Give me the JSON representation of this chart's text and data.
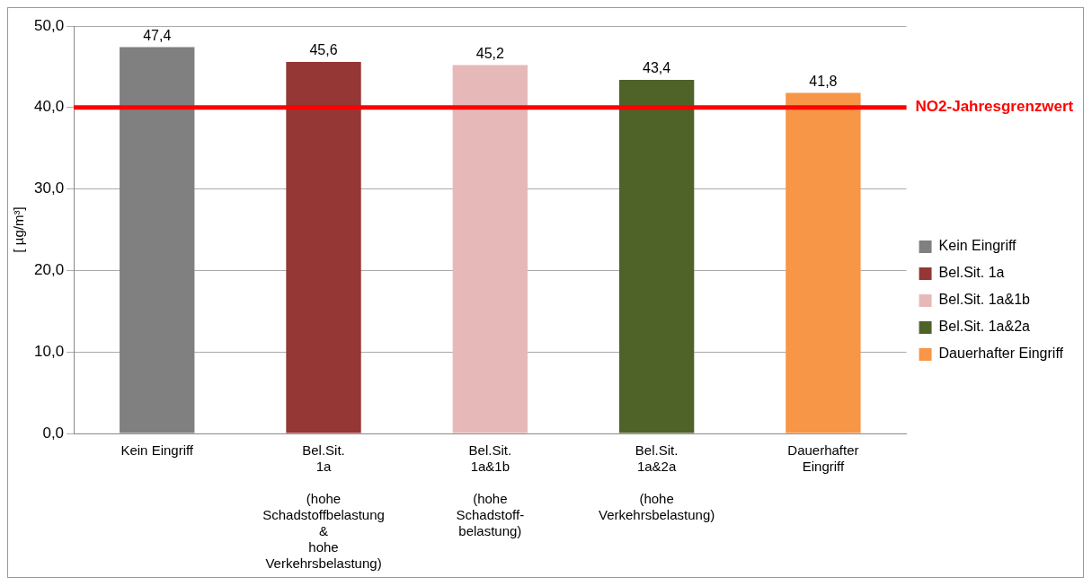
{
  "chart_data": {
    "type": "bar",
    "ylabel": "[ µg/m³]",
    "categories": [
      "Kein Eingriff",
      "Bel.Sit.\n1a\n\n(hohe\nSchadstoffbelastung\n&\nhohe\nVerkehrsbelastung)",
      "Bel.Sit.\n1a&1b\n\n(hohe\nSchadstoff-\nbelastung)",
      "Bel.Sit.\n1a&2a\n\n(hohe\nVerkehrsbelastung)",
      "Dauerhafter\nEingriff"
    ],
    "series": [
      {
        "name": "Kein Eingriff",
        "color": "#808080",
        "values": [
          47.4,
          null,
          null,
          null,
          null
        ],
        "value_labels": [
          "47,4",
          null,
          null,
          null,
          null
        ]
      },
      {
        "name": "Bel.Sit. 1a",
        "color": "#953735",
        "values": [
          null,
          45.6,
          null,
          null,
          null
        ],
        "value_labels": [
          null,
          "45,6",
          null,
          null,
          null
        ]
      },
      {
        "name": "Bel.Sit. 1a&1b",
        "color": "#e6b9b8",
        "values": [
          null,
          null,
          45.2,
          null,
          null
        ],
        "value_labels": [
          null,
          null,
          "45,2",
          null,
          null
        ]
      },
      {
        "name": "Bel.Sit. 1a&2a",
        "color": "#4f6228",
        "values": [
          null,
          null,
          null,
          43.4,
          null
        ],
        "value_labels": [
          null,
          null,
          null,
          "43,4",
          null
        ]
      },
      {
        "name": "Dauerhafter Eingriff",
        "color": "#f79646",
        "values": [
          null,
          null,
          null,
          null,
          41.8
        ],
        "value_labels": [
          null,
          null,
          null,
          null,
          "41,8"
        ]
      }
    ],
    "ylim": [
      0,
      50
    ],
    "yticks": [
      {
        "value": 0,
        "label": "0,0"
      },
      {
        "value": 10,
        "label": "10,0"
      },
      {
        "value": 20,
        "label": "20,0"
      },
      {
        "value": 30,
        "label": "30,0"
      },
      {
        "value": 40,
        "label": "40,0"
      },
      {
        "value": 50,
        "label": "50,0"
      }
    ],
    "ref_lines": [
      {
        "axis": "y",
        "value": 40,
        "label": "NO2-Jahresgrenzwert",
        "color": "#ff0000"
      }
    ],
    "grid": "y",
    "legend": "right"
  }
}
